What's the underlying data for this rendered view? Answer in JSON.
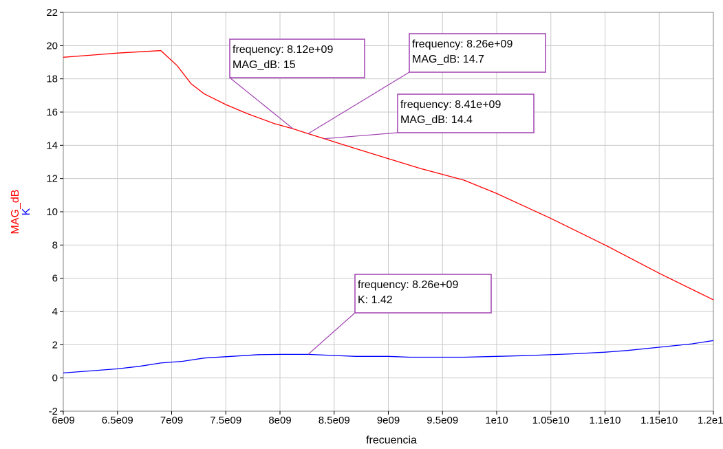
{
  "chart_data": {
    "type": "line",
    "xlabel": "frecuencia",
    "ylabels": [
      {
        "text": "MAG_dB",
        "color": "#ff0000"
      },
      {
        "text": "K",
        "color": "#0000ff"
      }
    ],
    "xlim": [
      6000000000,
      12000000000
    ],
    "ylim": [
      -2,
      22
    ],
    "x_ticks": [
      6000000000,
      6500000000,
      7000000000,
      7500000000,
      8000000000,
      8500000000,
      9000000000,
      9500000000,
      10000000000,
      10500000000,
      11000000000,
      11500000000,
      12000000000
    ],
    "x_tick_labels": [
      "6e09",
      "6.5e09",
      "7e09",
      "7.5e09",
      "8e09",
      "8.5e09",
      "9e09",
      "9.5e09",
      "1e10",
      "1.05e10",
      "1.1e10",
      "1.15e10",
      "1.2e10"
    ],
    "y_ticks": [
      -2,
      0,
      2,
      4,
      6,
      8,
      10,
      12,
      14,
      16,
      18,
      20,
      22
    ],
    "y_tick_labels": [
      "-2",
      "0",
      "2",
      "4",
      "6",
      "8",
      "10",
      "12",
      "14",
      "16",
      "18",
      "20",
      "22"
    ],
    "grid": true,
    "series": [
      {
        "name": "MAG_dB",
        "color": "#ff0000",
        "x": [
          6000000000,
          6500000000,
          6900000000,
          7050000000,
          7180000000,
          7300000000,
          7500000000,
          7700000000,
          7950000000,
          8120000000,
          8260000000,
          8410000000,
          8600000000,
          8800000000,
          9000000000,
          9300000000,
          9700000000,
          10000000000,
          10500000000,
          11000000000,
          11500000000,
          12000000000
        ],
        "y": [
          19.3,
          19.55,
          19.7,
          18.8,
          17.7,
          17.1,
          16.45,
          15.9,
          15.3,
          15.0,
          14.7,
          14.4,
          14.0,
          13.6,
          13.2,
          12.6,
          11.9,
          11.1,
          9.6,
          8.0,
          6.3,
          4.7
        ]
      },
      {
        "name": "K",
        "color": "#0000ff",
        "x": [
          6000000000,
          6500000000,
          6700000000,
          6900000000,
          7100000000,
          7300000000,
          7550000000,
          7800000000,
          8000000000,
          8260000000,
          8500000000,
          8700000000,
          9000000000,
          9200000000,
          9500000000,
          9700000000,
          10000000000,
          10300000000,
          10700000000,
          11000000000,
          11200000000,
          11500000000,
          11800000000,
          12000000000
        ],
        "y": [
          0.3,
          0.55,
          0.7,
          0.9,
          1.0,
          1.2,
          1.3,
          1.4,
          1.42,
          1.42,
          1.35,
          1.3,
          1.3,
          1.25,
          1.25,
          1.25,
          1.3,
          1.35,
          1.45,
          1.55,
          1.65,
          1.85,
          2.05,
          2.25
        ]
      }
    ],
    "markers": [
      {
        "x_value": 8120000000,
        "y_value": 15,
        "lines": [
          "frequency: 8.12e+09",
          "MAG_dB: 15"
        ]
      },
      {
        "x_value": 8260000000,
        "y_value": 14.7,
        "lines": [
          "frequency: 8.26e+09",
          "MAG_dB: 14.7"
        ]
      },
      {
        "x_value": 8410000000,
        "y_value": 14.4,
        "lines": [
          "frequency: 8.41e+09",
          "MAG_dB: 14.4"
        ]
      },
      {
        "x_value": 8260000000,
        "y_value": 1.42,
        "lines": [
          "frequency: 8.26e+09",
          "K: 1.42"
        ]
      }
    ],
    "marker_color": "#a040b0"
  }
}
